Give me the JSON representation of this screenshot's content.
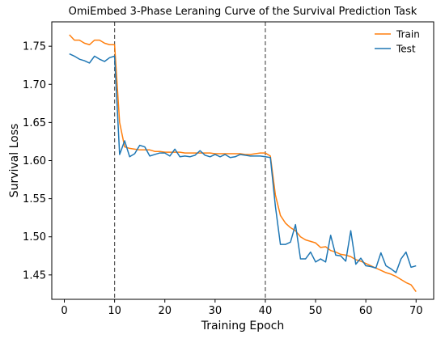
{
  "chart_data": {
    "type": "line",
    "title": "OmiEmbed 3-Phase Leraning Curve of the Survival Prediction Task",
    "xlabel": "Training Epoch",
    "ylabel": "Survival Loss",
    "xlim": [
      -2.5,
      73.5
    ],
    "ylim": [
      1.418,
      1.782
    ],
    "xticks": [
      0,
      10,
      20,
      30,
      40,
      50,
      60,
      70
    ],
    "xtick_labels": [
      "0",
      "10",
      "20",
      "30",
      "40",
      "50",
      "60",
      "70"
    ],
    "yticks": [
      1.45,
      1.5,
      1.55,
      1.6,
      1.65,
      1.7,
      1.75
    ],
    "ytick_labels": [
      "1.45",
      "1.50",
      "1.55",
      "1.60",
      "1.65",
      "1.70",
      "1.75"
    ],
    "vlines": [
      10,
      40
    ],
    "legend_position": "top-right",
    "grid": false,
    "series": [
      {
        "name": "Train",
        "color": "#ff7f0e",
        "x": [
          1,
          2,
          3,
          4,
          5,
          6,
          7,
          8,
          9,
          10,
          11,
          12,
          13,
          14,
          15,
          16,
          17,
          18,
          19,
          20,
          21,
          22,
          23,
          24,
          25,
          26,
          27,
          28,
          29,
          30,
          31,
          32,
          33,
          34,
          35,
          36,
          37,
          38,
          39,
          40,
          41,
          42,
          43,
          44,
          45,
          46,
          47,
          48,
          49,
          50,
          51,
          52,
          53,
          54,
          55,
          56,
          57,
          58,
          59,
          60,
          61,
          62,
          63,
          64,
          65,
          66,
          67,
          68,
          69,
          70
        ],
        "values": [
          1.765,
          1.758,
          1.758,
          1.754,
          1.752,
          1.758,
          1.758,
          1.754,
          1.752,
          1.752,
          1.65,
          1.618,
          1.616,
          1.615,
          1.614,
          1.614,
          1.614,
          1.612,
          1.612,
          1.611,
          1.611,
          1.611,
          1.611,
          1.61,
          1.61,
          1.61,
          1.61,
          1.61,
          1.61,
          1.609,
          1.609,
          1.609,
          1.609,
          1.609,
          1.609,
          1.608,
          1.608,
          1.609,
          1.61,
          1.61,
          1.606,
          1.555,
          1.528,
          1.518,
          1.512,
          1.508,
          1.5,
          1.496,
          1.494,
          1.492,
          1.486,
          1.487,
          1.482,
          1.48,
          1.477,
          1.476,
          1.474,
          1.47,
          1.468,
          1.465,
          1.462,
          1.459,
          1.456,
          1.453,
          1.451,
          1.448,
          1.444,
          1.44,
          1.437,
          1.428
        ]
      },
      {
        "name": "Test",
        "color": "#1f77b4",
        "x": [
          1,
          2,
          3,
          4,
          5,
          6,
          7,
          8,
          9,
          10,
          11,
          12,
          13,
          14,
          15,
          16,
          17,
          18,
          19,
          20,
          21,
          22,
          23,
          24,
          25,
          26,
          27,
          28,
          29,
          30,
          31,
          32,
          33,
          34,
          35,
          36,
          37,
          38,
          39,
          40,
          41,
          42,
          43,
          44,
          45,
          46,
          47,
          48,
          49,
          50,
          51,
          52,
          53,
          54,
          55,
          56,
          57,
          58,
          59,
          60,
          61,
          62,
          63,
          64,
          65,
          66,
          67,
          68,
          69,
          70
        ],
        "values": [
          1.74,
          1.737,
          1.733,
          1.731,
          1.728,
          1.737,
          1.733,
          1.73,
          1.735,
          1.737,
          1.608,
          1.626,
          1.605,
          1.609,
          1.62,
          1.618,
          1.606,
          1.608,
          1.61,
          1.61,
          1.606,
          1.615,
          1.605,
          1.606,
          1.605,
          1.607,
          1.613,
          1.607,
          1.605,
          1.608,
          1.605,
          1.608,
          1.604,
          1.605,
          1.608,
          1.607,
          1.606,
          1.606,
          1.606,
          1.605,
          1.604,
          1.54,
          1.49,
          1.49,
          1.493,
          1.516,
          1.471,
          1.471,
          1.48,
          1.467,
          1.471,
          1.467,
          1.502,
          1.476,
          1.475,
          1.468,
          1.508,
          1.464,
          1.472,
          1.462,
          1.461,
          1.459,
          1.479,
          1.462,
          1.458,
          1.453,
          1.471,
          1.48,
          1.46,
          1.462
        ]
      }
    ]
  }
}
